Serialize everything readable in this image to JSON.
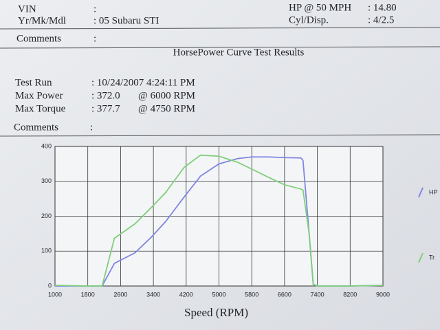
{
  "header": {
    "rows": [
      {
        "label": "VIN",
        "value": ":"
      },
      {
        "label": "Yr/Mk/Mdl",
        "value": ": 05 Subaru STI"
      }
    ],
    "right_rows": [
      {
        "label": "HP @ 50 MPH",
        "value": ": 14.80"
      },
      {
        "label": "Cyl/Disp.",
        "value": ": 4/2.5"
      }
    ],
    "comments": {
      "label": "Comments",
      "value": ":"
    }
  },
  "results": {
    "title": "HorsePower Curve Test Results",
    "rows": [
      {
        "label": "Test Run",
        "value": ": 10/24/2007 4:24:11 PM",
        "extra": ""
      },
      {
        "label": "Max Power",
        "value": ": 372.0",
        "extra": "@ 6000  RPM"
      },
      {
        "label": "Max Torque",
        "value": ": 377.7",
        "extra": "@ 4750  RPM"
      }
    ],
    "comments": {
      "label": "Comments",
      "value": ":"
    }
  },
  "chart_data": {
    "type": "line",
    "x_label": "Speed (RPM)",
    "x": [
      1000,
      1800,
      2150,
      2450,
      2950,
      3350,
      3700,
      4150,
      4550,
      5000,
      5450,
      5800,
      6200,
      6600,
      7000,
      7050,
      7200,
      7300,
      7400,
      8200,
      9000
    ],
    "series": [
      {
        "name": "HP",
        "color": "#7f86e0",
        "values": [
          0,
          0,
          0,
          65,
          95,
          140,
          185,
          255,
          315,
          350,
          365,
          370,
          370,
          368,
          367,
          360,
          150,
          5,
          0,
          0,
          2
        ]
      },
      {
        "name": "Tr",
        "color": "#7fcf7a",
        "values": [
          2,
          0,
          0,
          137,
          178,
          225,
          268,
          340,
          375,
          372,
          355,
          335,
          312,
          290,
          278,
          275,
          150,
          5,
          0,
          0,
          2
        ]
      }
    ],
    "xlim": [
      1000,
      9000
    ],
    "ylim": [
      0,
      400
    ],
    "xticks": [
      1000,
      1800,
      2600,
      3400,
      4200,
      5000,
      5800,
      6600,
      7400,
      8200,
      9000
    ],
    "yticks": [
      0,
      100,
      200,
      300,
      400
    ],
    "grid": true
  }
}
